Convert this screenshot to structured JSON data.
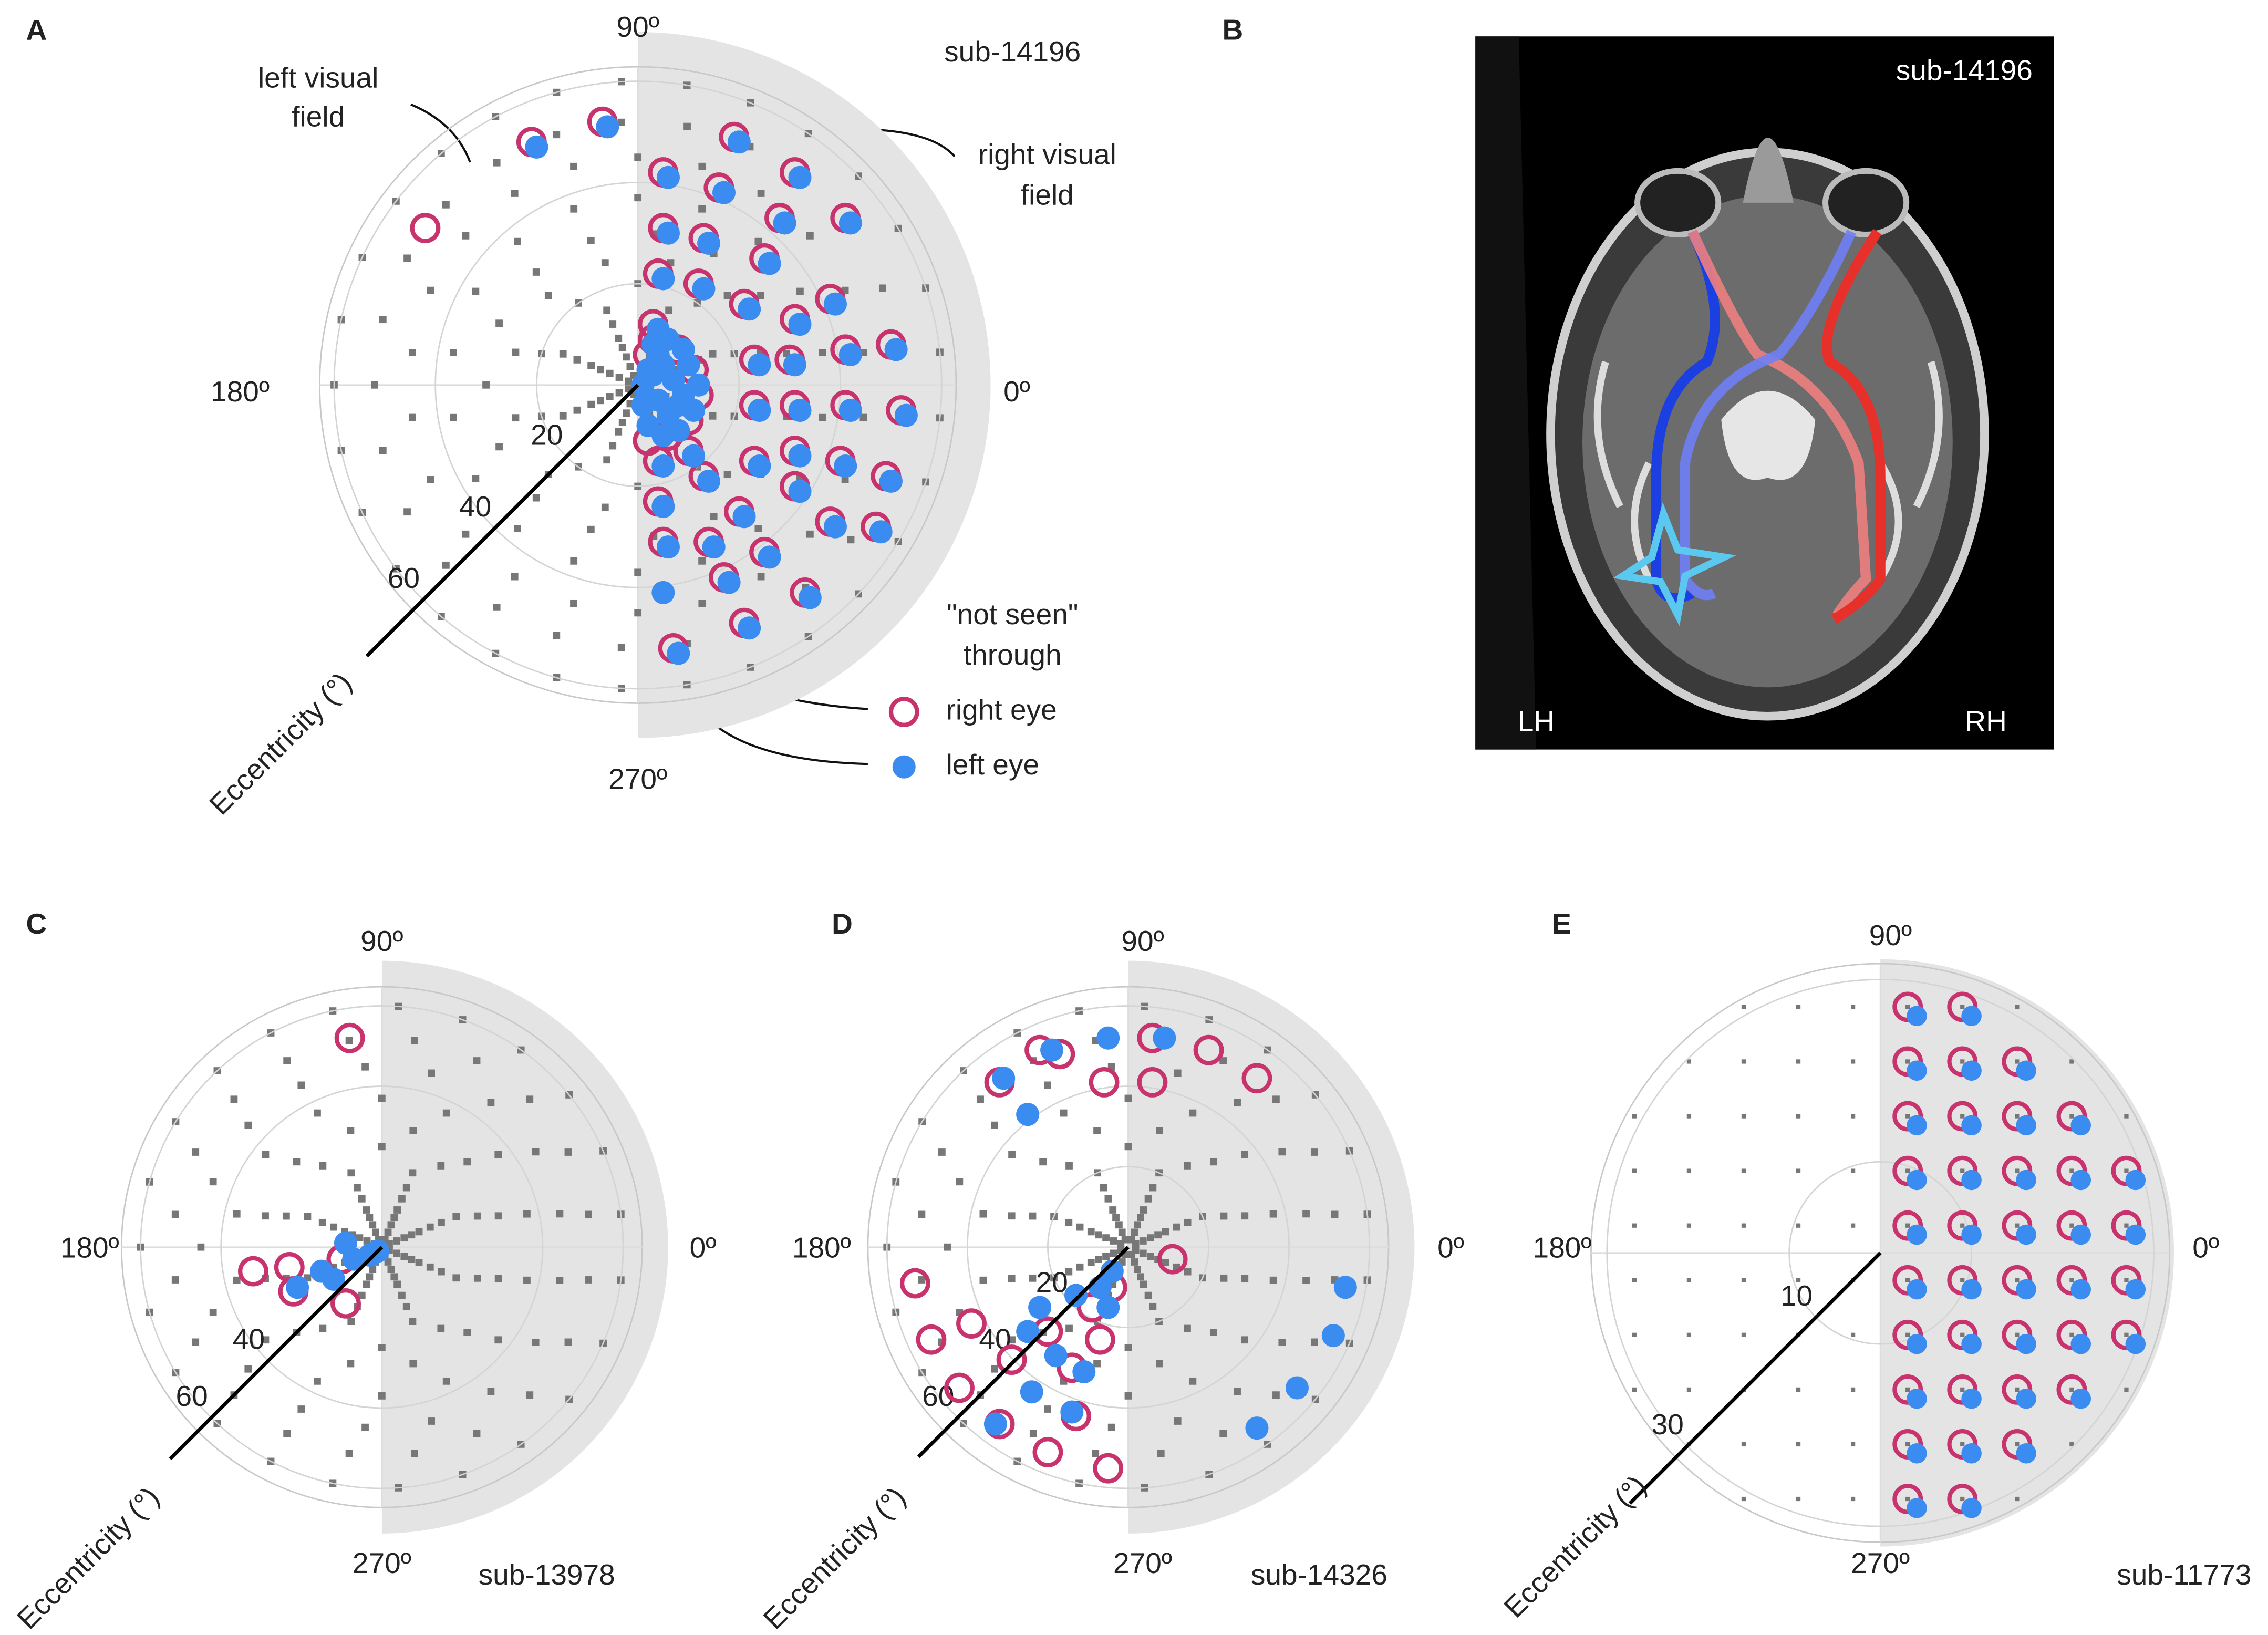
{
  "panels": [
    {
      "label": "A",
      "subject": "sub-14196",
      "angle_labels": [
        "90º",
        "180º",
        "0º",
        "270º"
      ],
      "eccentricity_ticks": [
        20,
        40,
        60
      ],
      "axis_label": "Eccentricity (°)",
      "annotations": [
        [
          "left visual",
          "field"
        ],
        [
          "right visual",
          "field"
        ]
      ],
      "legend": {
        "title": [
          "\"not seen\"",
          "through"
        ],
        "right_eye": "right eye",
        "left_eye": "left eye"
      },
      "right_eye": [
        [
          -21,
          48
        ],
        [
          -7,
          52
        ],
        [
          -42,
          31
        ],
        [
          5,
          42
        ],
        [
          19,
          49
        ],
        [
          31,
          42
        ],
        [
          41,
          33
        ],
        [
          5,
          31
        ],
        [
          16,
          39
        ],
        [
          28,
          33
        ],
        [
          4,
          22
        ],
        [
          13,
          29
        ],
        [
          25,
          25
        ],
        [
          38,
          17
        ],
        [
          50,
          8
        ],
        [
          3,
          12
        ],
        [
          12,
          20
        ],
        [
          21,
          16
        ],
        [
          31,
          13
        ],
        [
          41,
          7
        ],
        [
          30,
          5
        ],
        [
          41,
          -4
        ],
        [
          52,
          -5
        ],
        [
          23,
          5
        ],
        [
          23,
          -4
        ],
        [
          31,
          -4
        ],
        [
          31,
          -13
        ],
        [
          40,
          -15
        ],
        [
          49,
          -18
        ],
        [
          13,
          -18
        ],
        [
          23,
          -15
        ],
        [
          31,
          -20
        ],
        [
          4,
          -23
        ],
        [
          20,
          -25
        ],
        [
          38,
          -27
        ],
        [
          5,
          -31
        ],
        [
          14,
          -31
        ],
        [
          25,
          -33
        ],
        [
          47,
          -28
        ],
        [
          17,
          -38
        ],
        [
          33,
          -41
        ],
        [
          21,
          -47
        ],
        [
          7,
          -52
        ],
        [
          10,
          -13
        ],
        [
          4,
          -15
        ],
        [
          3,
          9
        ],
        [
          8,
          7
        ],
        [
          11,
          3
        ],
        [
          12,
          -2
        ],
        [
          10,
          -7
        ],
        [
          6,
          -10
        ],
        [
          2,
          -11
        ],
        [
          2,
          6
        ]
      ],
      "left_eye": [
        [
          -20,
          47
        ],
        [
          -6,
          51
        ],
        [
          6,
          41
        ],
        [
          20,
          48
        ],
        [
          32,
          41
        ],
        [
          42,
          32
        ],
        [
          6,
          30
        ],
        [
          17,
          38
        ],
        [
          29,
          32
        ],
        [
          5,
          21
        ],
        [
          14,
          28
        ],
        [
          26,
          24
        ],
        [
          39,
          16
        ],
        [
          51,
          7
        ],
        [
          4,
          11
        ],
        [
          13,
          19
        ],
        [
          22,
          15
        ],
        [
          32,
          12
        ],
        [
          42,
          6
        ],
        [
          31,
          4
        ],
        [
          42,
          -5
        ],
        [
          53,
          -6
        ],
        [
          24,
          4
        ],
        [
          24,
          -5
        ],
        [
          32,
          -5
        ],
        [
          32,
          -14
        ],
        [
          41,
          -16
        ],
        [
          50,
          -19
        ],
        [
          14,
          -19
        ],
        [
          24,
          -16
        ],
        [
          32,
          -21
        ],
        [
          5,
          -24
        ],
        [
          21,
          -26
        ],
        [
          39,
          -28
        ],
        [
          6,
          -32
        ],
        [
          15,
          -32
        ],
        [
          26,
          -34
        ],
        [
          48,
          -29
        ],
        [
          18,
          -39
        ],
        [
          34,
          -42
        ],
        [
          22,
          -48
        ],
        [
          8,
          -53
        ],
        [
          11,
          -14
        ],
        [
          5,
          -16
        ],
        [
          5,
          -41
        ],
        [
          1,
          0
        ],
        [
          3,
          2
        ],
        [
          5,
          4
        ],
        [
          7,
          1
        ],
        [
          9,
          -2
        ],
        [
          4,
          -3
        ],
        [
          6,
          -6
        ],
        [
          2,
          -8
        ],
        [
          8,
          -9
        ],
        [
          10,
          4
        ],
        [
          12,
          0
        ],
        [
          3,
          8
        ],
        [
          6,
          9
        ],
        [
          1,
          -4
        ],
        [
          11,
          -5
        ],
        [
          5,
          -10
        ],
        [
          2,
          3
        ],
        [
          8,
          -4
        ],
        [
          4,
          6
        ],
        [
          9,
          7
        ]
      ]
    },
    {
      "label": "B",
      "subject": "sub-14196",
      "hemispheres": [
        "LH",
        "RH"
      ]
    },
    {
      "label": "C",
      "subject": "sub-13978",
      "angle_labels": [
        "90º",
        "180º",
        "0º",
        "270º"
      ],
      "eccentricity_ticks": [
        40,
        60
      ],
      "axis_label": "Eccentricity (°)",
      "right_eye": [
        [
          -8,
          52
        ],
        [
          -32,
          -6
        ],
        [
          -23,
          -5
        ],
        [
          -22,
          -11
        ],
        [
          -9,
          -14
        ],
        [
          -10,
          -3
        ]
      ],
      "left_eye": [
        [
          -21,
          -10
        ],
        [
          -15,
          -6
        ],
        [
          -12,
          -8
        ],
        [
          -7,
          -3
        ],
        [
          -3,
          -2
        ],
        [
          -1,
          -1
        ],
        [
          -9,
          1
        ]
      ]
    },
    {
      "label": "D",
      "subject": "sub-14326",
      "angle_labels": [
        "90º",
        "180º",
        "0º",
        "270º"
      ],
      "eccentricity_ticks": [
        20,
        40,
        60
      ],
      "axis_label": "Eccentricity (°)",
      "right_eye": [
        [
          -32,
          41
        ],
        [
          -17,
          48
        ],
        [
          -6,
          41
        ],
        [
          6,
          52
        ],
        [
          20,
          49
        ],
        [
          32,
          42
        ],
        [
          6,
          41
        ],
        [
          -22,
          49
        ],
        [
          11,
          -3
        ],
        [
          -53,
          -9
        ],
        [
          -49,
          -23
        ],
        [
          -39,
          -19
        ],
        [
          -42,
          -35
        ],
        [
          -32,
          -44
        ],
        [
          -20,
          -51
        ],
        [
          -5,
          -55
        ],
        [
          -13,
          -42
        ],
        [
          -29,
          -28
        ],
        [
          -20,
          -21
        ],
        [
          -9,
          -15
        ],
        [
          -4,
          -10
        ],
        [
          -14,
          -30
        ],
        [
          -7,
          -23
        ]
      ],
      "left_eye": [
        [
          -31,
          42
        ],
        [
          -19,
          49
        ],
        [
          -5,
          52
        ],
        [
          9,
          52
        ],
        [
          -25,
          33
        ],
        [
          54,
          -10
        ],
        [
          51,
          -22
        ],
        [
          42,
          -35
        ],
        [
          32,
          -45
        ],
        [
          -25,
          -21
        ],
        [
          -18,
          -27
        ],
        [
          -11,
          -31
        ],
        [
          -24,
          -36
        ],
        [
          -33,
          -44
        ],
        [
          -14,
          -41
        ],
        [
          -5,
          -15
        ],
        [
          -7,
          -10
        ],
        [
          -4,
          -6
        ],
        [
          -13,
          -12
        ],
        [
          -22,
          -15
        ]
      ]
    },
    {
      "label": "E",
      "subject": "sub-11773",
      "angle_labels": [
        "90º",
        "180º",
        "0º",
        "270º"
      ],
      "eccentricity_ticks": [
        10,
        30
      ],
      "axis_label": "Eccentricity (°)",
      "right_eye": [
        [
          3,
          27
        ],
        [
          9,
          27
        ],
        [
          3,
          21
        ],
        [
          9,
          21
        ],
        [
          15,
          21
        ],
        [
          3,
          15
        ],
        [
          9,
          15
        ],
        [
          15,
          15
        ],
        [
          21,
          15
        ],
        [
          3,
          9
        ],
        [
          9,
          9
        ],
        [
          15,
          9
        ],
        [
          21,
          9
        ],
        [
          27,
          9
        ],
        [
          3,
          3
        ],
        [
          9,
          3
        ],
        [
          15,
          3
        ],
        [
          21,
          3
        ],
        [
          27,
          3
        ],
        [
          3,
          -3
        ],
        [
          9,
          -3
        ],
        [
          15,
          -3
        ],
        [
          21,
          -3
        ],
        [
          27,
          -3
        ],
        [
          3,
          -9
        ],
        [
          9,
          -9
        ],
        [
          15,
          -9
        ],
        [
          21,
          -9
        ],
        [
          27,
          -9
        ],
        [
          3,
          -15
        ],
        [
          9,
          -15
        ],
        [
          15,
          -15
        ],
        [
          21,
          -15
        ],
        [
          3,
          -21
        ],
        [
          9,
          -21
        ],
        [
          15,
          -21
        ],
        [
          3,
          -27
        ],
        [
          9,
          -27
        ]
      ],
      "left_eye": [
        [
          4,
          26
        ],
        [
          10,
          26
        ],
        [
          4,
          20
        ],
        [
          10,
          20
        ],
        [
          16,
          20
        ],
        [
          4,
          14
        ],
        [
          10,
          14
        ],
        [
          16,
          14
        ],
        [
          22,
          14
        ],
        [
          4,
          8
        ],
        [
          10,
          8
        ],
        [
          16,
          8
        ],
        [
          22,
          8
        ],
        [
          28,
          8
        ],
        [
          4,
          2
        ],
        [
          10,
          2
        ],
        [
          16,
          2
        ],
        [
          22,
          2
        ],
        [
          28,
          2
        ],
        [
          4,
          -4
        ],
        [
          10,
          -4
        ],
        [
          16,
          -4
        ],
        [
          22,
          -4
        ],
        [
          28,
          -4
        ],
        [
          4,
          -10
        ],
        [
          10,
          -10
        ],
        [
          16,
          -10
        ],
        [
          22,
          -10
        ],
        [
          28,
          -10
        ],
        [
          4,
          -16
        ],
        [
          10,
          -16
        ],
        [
          16,
          -16
        ],
        [
          22,
          -16
        ],
        [
          4,
          -22
        ],
        [
          10,
          -22
        ],
        [
          16,
          -22
        ],
        [
          4,
          -28
        ],
        [
          10,
          -28
        ]
      ]
    }
  ]
}
